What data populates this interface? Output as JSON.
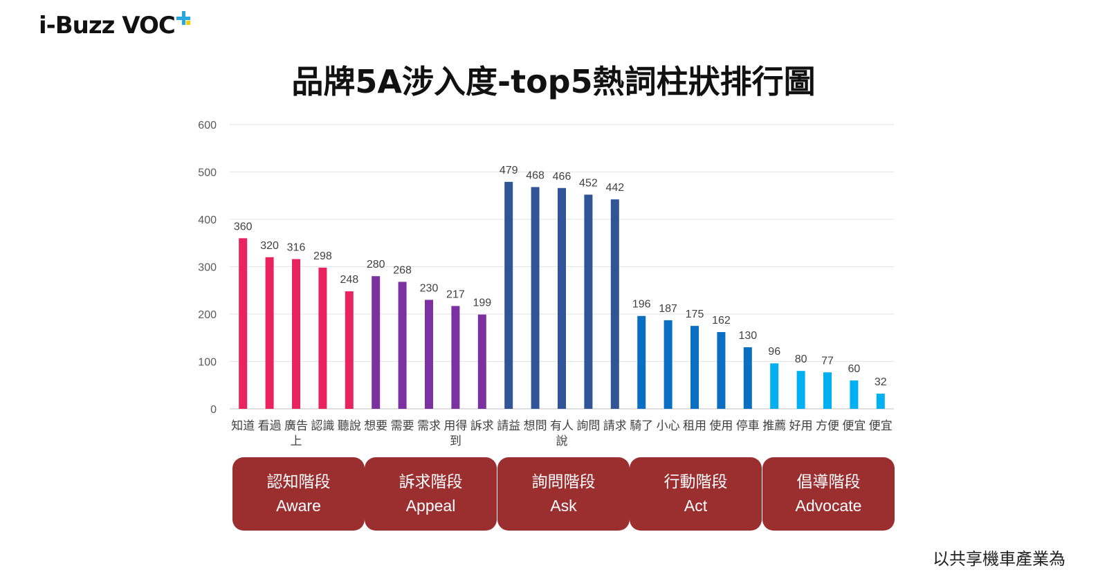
{
  "logo": {
    "text": "i-Buzz VOC",
    "plus_color": "#29a8e0",
    "dot_color": "#f5d000"
  },
  "title": "品牌5A涉入度-top5熱詞柱狀排行圖",
  "footnote": "以共享機車產業為",
  "stages": [
    {
      "zh": "認知階段",
      "en": "Aware"
    },
    {
      "zh": "訴求階段",
      "en": "Appeal"
    },
    {
      "zh": "詢問階段",
      "en": "Ask"
    },
    {
      "zh": "行動階段",
      "en": "Act"
    },
    {
      "zh": "倡導階段",
      "en": "Advocate"
    }
  ],
  "stage_color": "#9b2f30",
  "chart_data": {
    "type": "bar",
    "ylim": [
      0,
      600
    ],
    "yticks": [
      0,
      100,
      200,
      300,
      400,
      500,
      600
    ],
    "grid": true,
    "categories": [
      "知道",
      "看過",
      "廣告上",
      "認識",
      "聽說",
      "想要",
      "需要",
      "需求",
      "用得到",
      "訴求",
      "請益",
      "想問",
      "有人說",
      "詢問",
      "請求",
      "騎了",
      "小心",
      "租用",
      "使用",
      "停車",
      "推薦",
      "好用",
      "方便",
      "便宜",
      "便宜"
    ],
    "values": [
      360,
      320,
      316,
      298,
      248,
      280,
      268,
      230,
      217,
      199,
      479,
      468,
      466,
      452,
      442,
      196,
      187,
      175,
      162,
      130,
      96,
      80,
      77,
      60,
      32
    ],
    "series": [
      {
        "name": "Aware",
        "color": "#e8235f",
        "start": 0,
        "count": 5
      },
      {
        "name": "Appeal",
        "color": "#7b32a0",
        "start": 5,
        "count": 5
      },
      {
        "name": "Ask",
        "color": "#2f5597",
        "start": 10,
        "count": 5
      },
      {
        "name": "Act",
        "color": "#0a6fc2",
        "start": 15,
        "count": 5
      },
      {
        "name": "Advocate",
        "color": "#00b0f0",
        "start": 20,
        "count": 5
      }
    ]
  }
}
